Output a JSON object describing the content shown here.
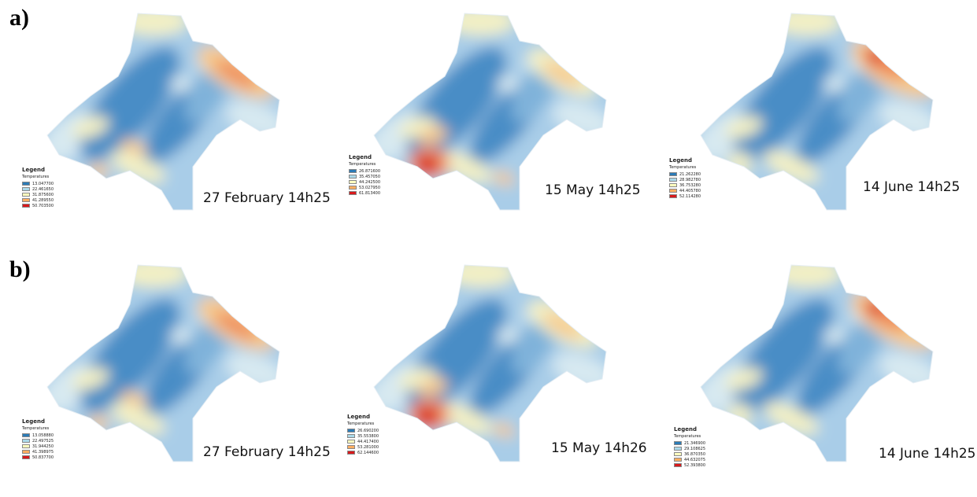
{
  "rows": [
    {
      "label": "a)",
      "panels": [
        {
          "caption": "27 February 14h25",
          "legend": {
            "title": "Legend",
            "subtitle": "Temperatures",
            "values": [
              "13.047700",
              "22.461650",
              "31.875600",
              "41.289550",
              "50.703500"
            ]
          }
        },
        {
          "caption": "15 May 14h25",
          "legend": {
            "title": "Legend",
            "subtitle": "Temperatures",
            "values": [
              "26.871600",
              "35.457050",
              "44.242500",
              "53.027950",
              "61.813400"
            ]
          }
        },
        {
          "caption": "14 June 14h25",
          "legend": {
            "title": "Legend",
            "subtitle": "Temperatures",
            "values": [
              "21.262280",
              "28.982780",
              "36.753280",
              "44.405780",
              "52.114280"
            ]
          }
        }
      ]
    },
    {
      "label": "b)",
      "panels": [
        {
          "caption": "27 February 14h25",
          "legend": {
            "title": "Legend",
            "subtitle": "Temperatures",
            "values": [
              "13.058880",
              "22.497525",
              "31.944250",
              "41.398975",
              "50.837700"
            ]
          }
        },
        {
          "caption": "15 May 14h26",
          "legend": {
            "title": "Legend",
            "subtitle": "Temperatures",
            "values": [
              "26.690200",
              "35.553800",
              "44.417400",
              "53.281000",
              "62.144600"
            ]
          }
        },
        {
          "caption": "14 June 14h25",
          "legend": {
            "title": "Legend",
            "subtitle": "Temperatures",
            "values": [
              "21.346900",
              "29.108625",
              "36.870350",
              "44.632075",
              "52.393800"
            ]
          }
        }
      ]
    }
  ],
  "legend_colors": [
    "#2c7bb6",
    "#abd9e9",
    "#ffffbf",
    "#fdae61",
    "#d7191c"
  ],
  "map_colors": {
    "deep_blue": "#4a8dc6",
    "blue": "#7fb2da",
    "light_blue": "#a9cde8",
    "pale": "#d7e9f1",
    "yellow": "#f3f0c4",
    "orange": "#f7c98b",
    "hot": "#ef8a5a",
    "red": "#d7191c"
  }
}
